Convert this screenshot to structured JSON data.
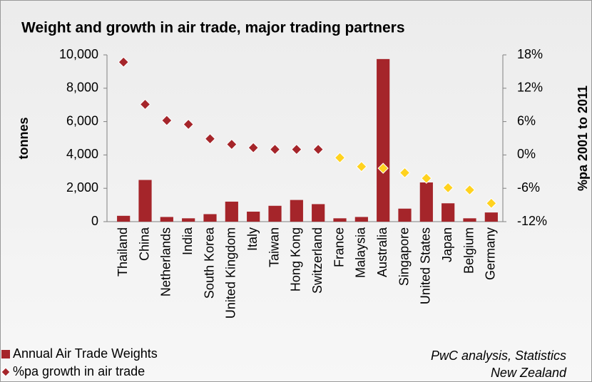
{
  "chart_data": {
    "type": "bar_dot_dual",
    "title": "Weight and growth in air trade, major trading partners",
    "y_label": "tonnes",
    "y2_label": "%pa 2001 to 2011",
    "annotation": [
      "PwC analysis, Statistics",
      "New Zealand"
    ],
    "categories": [
      "Thailand",
      "China",
      "Netherlands",
      "India",
      "South Korea",
      "United Kingdom",
      "Italy",
      "Taiwan",
      "Hong Kong",
      "Switzerland",
      "France",
      "Malaysia",
      "Australia",
      "Singapore",
      "United States",
      "Japan",
      "Belgium",
      "Germany"
    ],
    "series": [
      {
        "name": "Annual Air Trade Weights",
        "type": "bar",
        "color": "#a5252a",
        "values": [
          350,
          2500,
          280,
          200,
          450,
          1200,
          600,
          950,
          1300,
          1050,
          200,
          280,
          9750,
          780,
          2350,
          1100,
          200,
          550
        ]
      },
      {
        "name": "%pa growth in air trade",
        "type": "scatter",
        "axis": "y2",
        "color": "#a5252a",
        "point_colors": [
          "#a5252a",
          "#a5252a",
          "#a5252a",
          "#a5252a",
          "#a5252a",
          "#a5252a",
          "#a5252a",
          "#a5252a",
          "#a5252a",
          "#a5252a",
          "#ffd21f",
          "#ffd21f",
          "#ffd21f",
          "#ffd21f",
          "#ffd21f",
          "#ffd21f",
          "#ffd21f",
          "#ffd21f"
        ],
        "values": [
          16.7,
          9.1,
          6.2,
          5.5,
          2.9,
          1.9,
          1.3,
          1.0,
          1.0,
          1.0,
          -0.5,
          -2.1,
          -2.4,
          -3.2,
          -4.2,
          -5.9,
          -6.3,
          -8.7
        ]
      }
    ],
    "ylim": [
      0,
      10000
    ],
    "yticks": [
      0,
      {
        "value": 2000,
        "label": "2,000"
      },
      {
        "value": 4000,
        "label": "4,000"
      },
      {
        "value": 6000,
        "label": "6,000"
      },
      {
        "value": 8000,
        "label": "8,000"
      },
      {
        "value": 10000,
        "label": "10,000"
      }
    ],
    "y2lim": [
      -12,
      18
    ],
    "y2ticks": [
      {
        "value": -12,
        "label": "-12%"
      },
      {
        "value": -6,
        "label": "-6%"
      },
      {
        "value": 0,
        "label": "0%"
      },
      {
        "value": 6,
        "label": "6%"
      },
      {
        "value": 12,
        "label": "12%"
      },
      {
        "value": 18,
        "label": "18%"
      }
    ],
    "grid": false,
    "legend": "bottom-left"
  }
}
